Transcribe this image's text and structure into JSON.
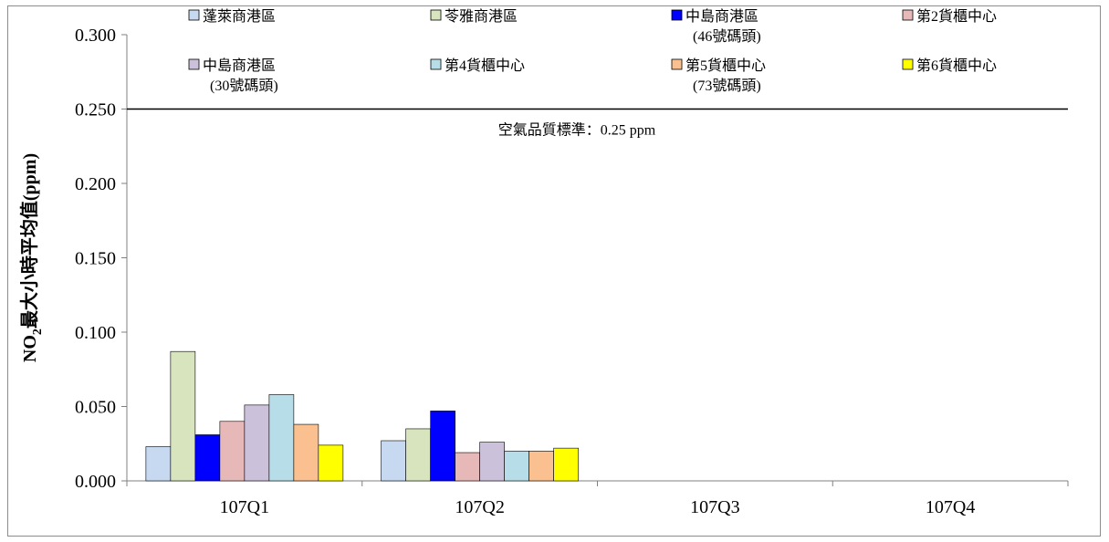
{
  "chart_data": {
    "type": "bar",
    "ylabel_parts": [
      "NO",
      "2",
      "最大小時平均值(ppm)"
    ],
    "ylim": [
      0,
      0.3
    ],
    "yticks": [
      "0.000",
      "0.050",
      "0.100",
      "0.150",
      "0.200",
      "0.250",
      "0.300"
    ],
    "ytick_values": [
      0,
      0.05,
      0.1,
      0.15,
      0.2,
      0.25,
      0.3
    ],
    "categories": [
      "107Q1",
      "107Q2",
      "107Q3",
      "107Q4"
    ],
    "series": [
      {
        "name": "蓬萊商港區",
        "name_line2": "",
        "color": "#c6d9f1",
        "values": [
          0.023,
          0.027,
          null,
          null
        ]
      },
      {
        "name": "苓雅商港區",
        "name_line2": "",
        "color": "#d7e4bd",
        "values": [
          0.087,
          0.035,
          null,
          null
        ]
      },
      {
        "name": "中島商港區",
        "name_line2": "(46號碼頭)",
        "color": "#0000ff",
        "values": [
          0.031,
          0.047,
          null,
          null
        ]
      },
      {
        "name": "第2貨櫃中心",
        "name_line2": "",
        "color": "#e6b9b8",
        "values": [
          0.04,
          0.019,
          null,
          null
        ]
      },
      {
        "name": "中島商港區",
        "name_line2": "(30號碼頭)",
        "color": "#ccc1da",
        "values": [
          0.051,
          0.026,
          null,
          null
        ]
      },
      {
        "name": "第4貨櫃中心",
        "name_line2": "",
        "color": "#b7dee8",
        "values": [
          0.058,
          0.02,
          null,
          null
        ]
      },
      {
        "name": "第5貨櫃中心",
        "name_line2": "(73號碼頭)",
        "color": "#fac090",
        "values": [
          0.038,
          0.02,
          null,
          null
        ]
      },
      {
        "name": "第6貨櫃中心",
        "name_line2": "",
        "color": "#ffff00",
        "values": [
          0.024,
          0.022,
          null,
          null
        ]
      }
    ],
    "reference_line": {
      "value": 0.25,
      "label": "空氣品質標準：0.25 ppm"
    },
    "legend_position": "top",
    "grid": false
  }
}
